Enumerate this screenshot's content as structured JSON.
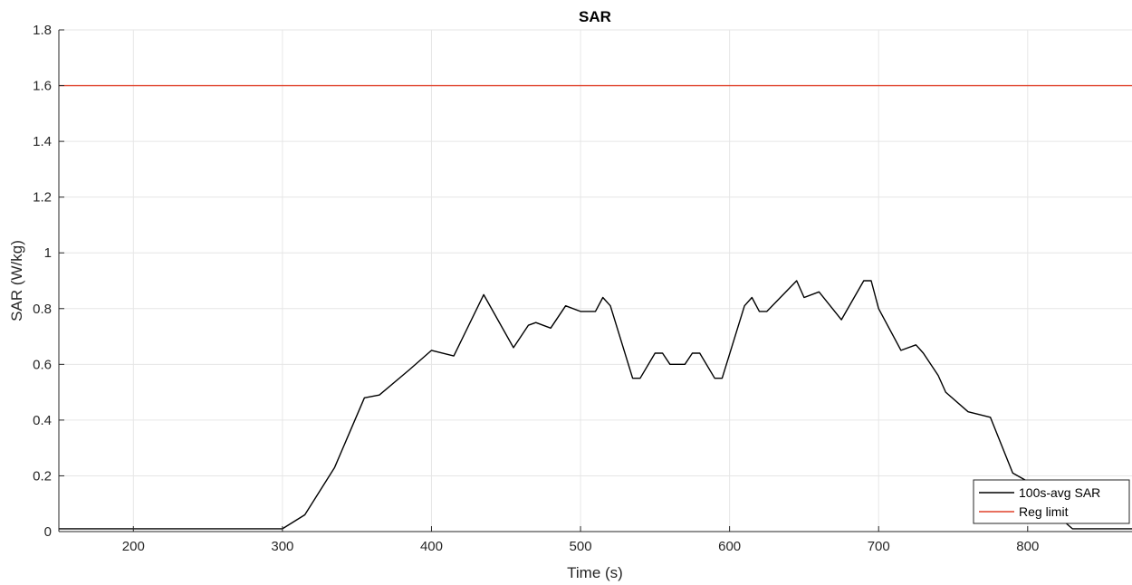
{
  "chart_data": {
    "type": "line",
    "title": "SAR",
    "xlabel": "Time (s)",
    "ylabel": "SAR (W/kg)",
    "xlim": [
      150,
      870
    ],
    "ylim": [
      0,
      1.8
    ],
    "xticks": [
      200,
      300,
      400,
      500,
      600,
      700,
      800
    ],
    "yticks": [
      0,
      0.2,
      0.4,
      0.6,
      0.8,
      1,
      1.2,
      1.4,
      1.6,
      1.8
    ],
    "xtick_labels": [
      "200",
      "300",
      "400",
      "500",
      "600",
      "700",
      "800"
    ],
    "ytick_labels": [
      "0",
      "0.2",
      "0.4",
      "0.6",
      "0.8",
      "1",
      "1.2",
      "1.4",
      "1.6",
      "1.8"
    ],
    "grid": true,
    "legend_position": "bottom-right",
    "series": [
      {
        "name": "100s-avg SAR",
        "color": "#000000",
        "x": [
          150,
          200,
          250,
          300,
          315,
          335,
          355,
          365,
          385,
          400,
          415,
          435,
          455,
          465,
          470,
          480,
          490,
          500,
          510,
          515,
          520,
          535,
          540,
          550,
          555,
          560,
          570,
          575,
          580,
          590,
          595,
          610,
          615,
          620,
          625,
          645,
          650,
          660,
          675,
          690,
          695,
          700,
          715,
          725,
          730,
          740,
          745,
          760,
          775,
          790,
          800,
          815,
          830,
          870
        ],
        "y": [
          0.01,
          0.01,
          0.01,
          0.01,
          0.06,
          0.23,
          0.48,
          0.49,
          0.58,
          0.65,
          0.63,
          0.85,
          0.66,
          0.74,
          0.75,
          0.73,
          0.81,
          0.79,
          0.79,
          0.84,
          0.81,
          0.55,
          0.55,
          0.64,
          0.64,
          0.6,
          0.6,
          0.64,
          0.64,
          0.55,
          0.55,
          0.81,
          0.84,
          0.79,
          0.79,
          0.9,
          0.84,
          0.86,
          0.76,
          0.9,
          0.9,
          0.8,
          0.65,
          0.67,
          0.64,
          0.56,
          0.5,
          0.43,
          0.41,
          0.21,
          0.18,
          0.08,
          0.01,
          0.01
        ]
      },
      {
        "name": "Reg limit",
        "color": "#e0412a",
        "x": [
          150,
          870
        ],
        "y": [
          1.6,
          1.6
        ]
      }
    ]
  }
}
